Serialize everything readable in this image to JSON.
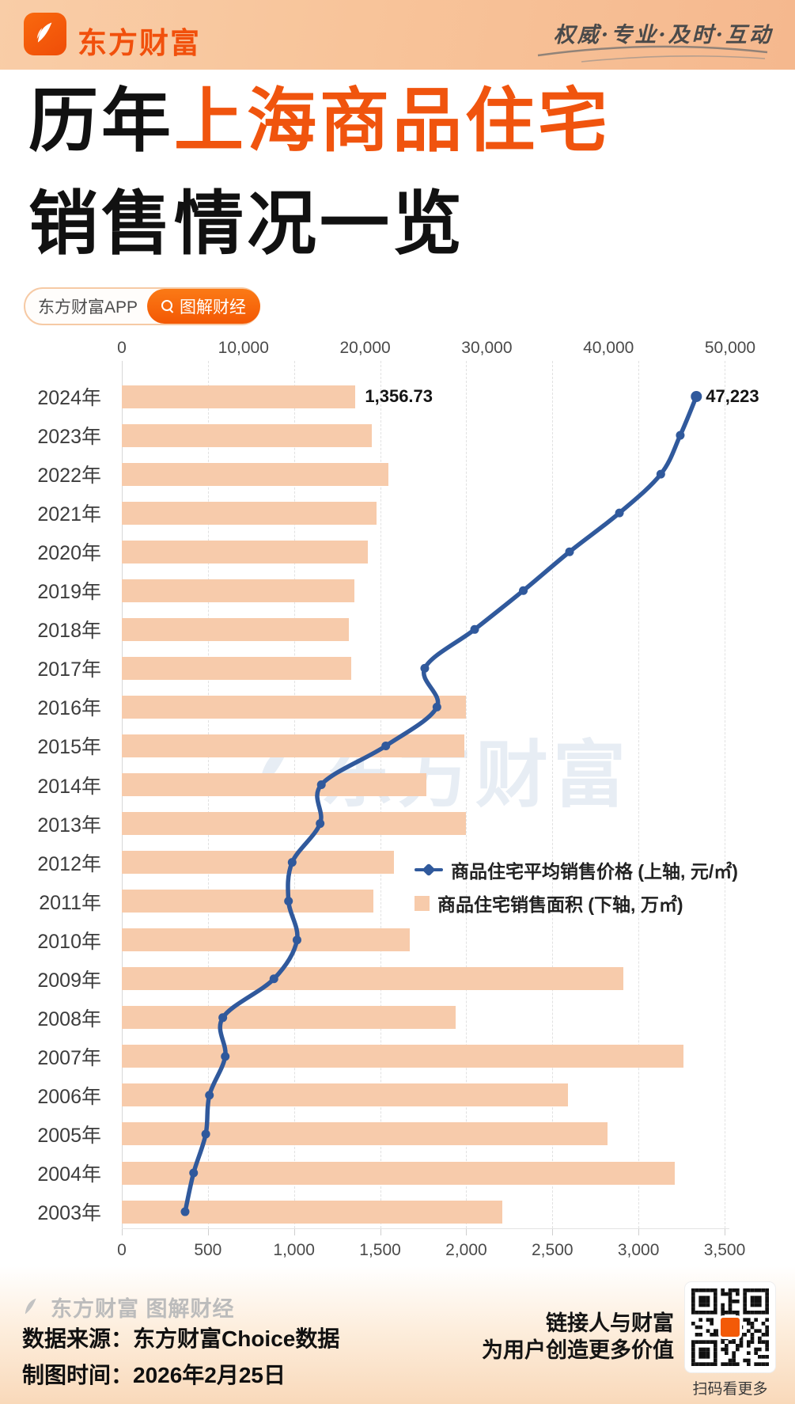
{
  "header": {
    "logo_text": "东方财富",
    "tagline": "权威·专业·及时·互动"
  },
  "title": {
    "black1": "历年",
    "orange": "上海商品住宅",
    "line2": "销售情况一览"
  },
  "badge": {
    "app_label": "东方财富APP",
    "tag_label": "图解财经"
  },
  "chart_data": {
    "type": "bar",
    "orientation": "horizontal",
    "title": "历年上海商品住宅销售情况一览",
    "categories": [
      "2024年",
      "2023年",
      "2022年",
      "2021年",
      "2020年",
      "2019年",
      "2018年",
      "2017年",
      "2016年",
      "2015年",
      "2014年",
      "2013年",
      "2012年",
      "2011年",
      "2010年",
      "2009年",
      "2008年",
      "2007年",
      "2006年",
      "2005年",
      "2004年",
      "2003年"
    ],
    "series": [
      {
        "name": "商品住宅平均销售价格 (上轴, 元/㎡)",
        "type": "line",
        "axis": "top",
        "values": [
          47223,
          45900,
          44300,
          40900,
          36800,
          33000,
          29000,
          24900,
          25900,
          21700,
          16400,
          16300,
          14000,
          13700,
          14400,
          12500,
          8300,
          8500,
          7200,
          6900,
          5900,
          5200
        ]
      },
      {
        "name": "商品住宅销售面积 (下轴, 万㎡)",
        "type": "bar",
        "axis": "bottom",
        "values": [
          1356.73,
          1450,
          1550,
          1480,
          1430,
          1350,
          1320,
          1330,
          2000,
          1990,
          1770,
          2000,
          1580,
          1460,
          1670,
          2910,
          1940,
          3260,
          2590,
          2820,
          3210,
          2210
        ]
      }
    ],
    "top_axis": {
      "ticks": [
        "0",
        "10,000",
        "20,000",
        "30,000",
        "40,000",
        "50,000"
      ],
      "min": 0,
      "max": 50000
    },
    "bottom_axis": {
      "ticks": [
        "0",
        "500",
        "1,000",
        "1,500",
        "2,000",
        "2,500",
        "3,000",
        "3,500"
      ],
      "min": 0,
      "max": 3500
    },
    "annotations": [
      {
        "row_index": 0,
        "series": "area",
        "text": "1,356.73"
      },
      {
        "row_index": 0,
        "series": "price",
        "text": "47,223"
      }
    ],
    "legend_position": "inside-right",
    "grid": true,
    "colors": {
      "bar": "#f7cbab",
      "line": "#30599c"
    }
  },
  "watermark": {
    "center_text": "东方财富"
  },
  "footer": {
    "watermark": "东方财富 图解财经",
    "source": "数据来源：东方财富Choice数据",
    "date": "制图时间：2026年2月25日",
    "slogan_line1": "链接人与财富",
    "slogan_line2": "为用户创造更多价值",
    "qr_caption": "扫码看更多"
  }
}
